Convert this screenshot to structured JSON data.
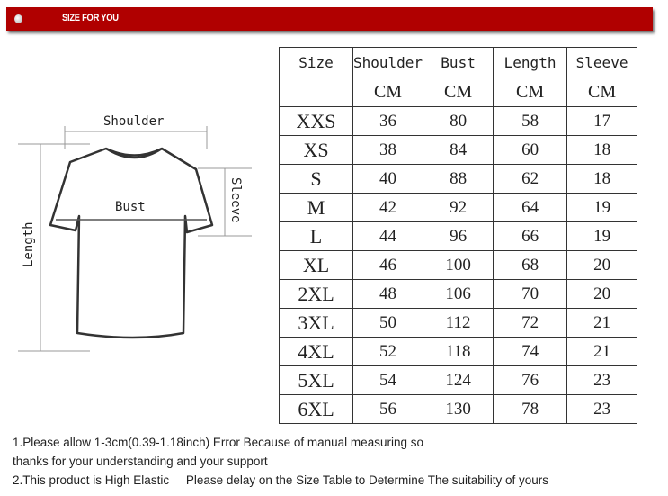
{
  "banner": {
    "title": "SIZE FOR YOU",
    "color": "#b00000"
  },
  "diagram": {
    "shoulder": "Shoulder",
    "bust": "Bust",
    "sleeve": "Sleeve",
    "length": "Length"
  },
  "table": {
    "headers": [
      "Size",
      "Shoulder",
      "Bust",
      "Length",
      "Sleeve"
    ],
    "units": [
      "",
      "CM",
      "CM",
      "CM",
      "CM"
    ],
    "rows": [
      [
        "XXS",
        "36",
        "80",
        "58",
        "17"
      ],
      [
        "XS",
        "38",
        "84",
        "60",
        "18"
      ],
      [
        "S",
        "40",
        "88",
        "62",
        "18"
      ],
      [
        "M",
        "42",
        "92",
        "64",
        "19"
      ],
      [
        "L",
        "44",
        "96",
        "66",
        "19"
      ],
      [
        "XL",
        "46",
        "100",
        "68",
        "20"
      ],
      [
        "2XL",
        "48",
        "106",
        "70",
        "20"
      ],
      [
        "3XL",
        "50",
        "112",
        "72",
        "21"
      ],
      [
        "4XL",
        "52",
        "118",
        "74",
        "21"
      ],
      [
        "5XL",
        "54",
        "124",
        "76",
        "23"
      ],
      [
        "6XL",
        "56",
        "130",
        "78",
        "23"
      ]
    ]
  },
  "notes": [
    "1.Please allow 1-3cm(0.39-1.18inch) Error Because of manual measuring so",
    "thanks for your understanding and your support",
    "2.This product is High Elastic     Please delay on the Size Table to Determine The suitability of yours"
  ]
}
